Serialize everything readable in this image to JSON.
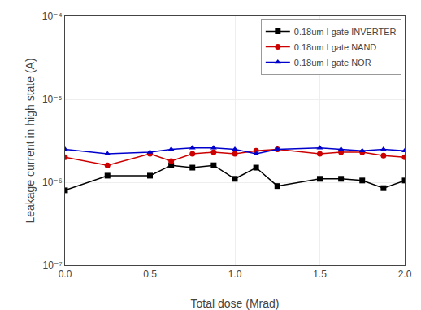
{
  "chart_data": {
    "type": "line",
    "x": [
      0.0,
      0.25,
      0.5,
      0.625,
      0.75,
      0.875,
      1.0,
      1.125,
      1.25,
      1.5,
      1.625,
      1.75,
      1.875,
      2.0
    ],
    "series": [
      {
        "name": "0.18um I gate INVERTER",
        "color": "#000000",
        "marker": "square",
        "values": [
          8e-07,
          1.2e-06,
          1.2e-06,
          1.6e-06,
          1.5e-06,
          1.6e-06,
          1.1e-06,
          1.5e-06,
          9e-07,
          1.1e-06,
          1.1e-06,
          1.05e-06,
          8.5e-07,
          1.05e-06
        ]
      },
      {
        "name": "0.18um I gate NAND",
        "color": "#cc0000",
        "marker": "circle",
        "values": [
          2e-06,
          1.6e-06,
          2.2e-06,
          1.8e-06,
          2.2e-06,
          2.3e-06,
          2.2e-06,
          2.4e-06,
          2.5e-06,
          2.2e-06,
          2.3e-06,
          2.3e-06,
          2.1e-06,
          2e-06
        ]
      },
      {
        "name": "0.18um I gate NOR",
        "color": "#0000cc",
        "marker": "triangle-up",
        "values": [
          2.5e-06,
          2.2e-06,
          2.3e-06,
          2.5e-06,
          2.6e-06,
          2.6e-06,
          2.5e-06,
          2.2e-06,
          2.5e-06,
          2.6e-06,
          2.5e-06,
          2.4e-06,
          2.5e-06,
          2.4e-06
        ]
      }
    ],
    "xlabel": "Total dose (Mrad)",
    "ylabel": "Leakage current in high state (A)",
    "xlim": [
      0.0,
      2.0
    ],
    "xticks": [
      {
        "value": 0.0,
        "label": "0.0"
      },
      0.5,
      {
        "value": 1.0,
        "label": "1.0"
      },
      1.5,
      {
        "value": 2.0,
        "label": "2.0"
      }
    ],
    "ylim": [
      1e-07,
      0.0001
    ],
    "yticks": [
      {
        "value": 1e-07,
        "label": "10⁻⁷"
      },
      {
        "value": 1e-06,
        "label": "10⁻⁶"
      },
      {
        "value": 1e-05,
        "label": "10⁻⁵"
      },
      {
        "value": 0.0001,
        "label": "10⁻⁴"
      }
    ],
    "log": "y",
    "grid": true,
    "legend": "upper right"
  }
}
